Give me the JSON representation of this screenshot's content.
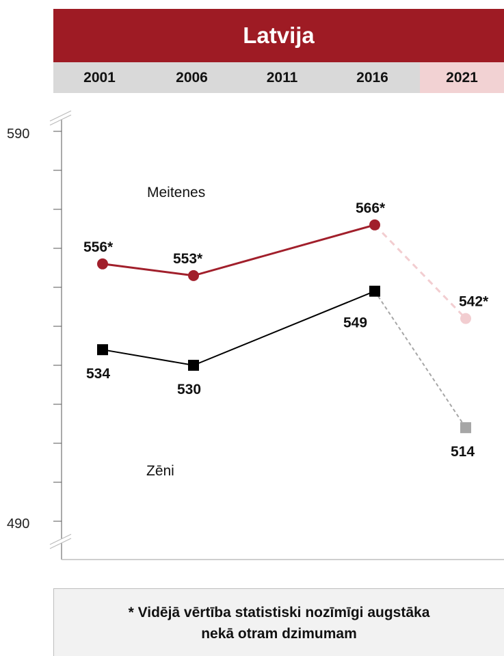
{
  "header": {
    "title": "Latvija",
    "highlight_color": "#9e1b24"
  },
  "chart_data": {
    "type": "line",
    "categories": [
      "2001",
      "2006",
      "2011",
      "2016",
      "2021"
    ],
    "ylim": [
      490,
      590
    ],
    "yticks": [
      "590",
      "490"
    ],
    "series": [
      {
        "name": "Meitenes",
        "color": "#a11f2b",
        "projected_color": "#f2cdd0",
        "marker": "circle",
        "points": [
          {
            "x": "2001",
            "y": 556,
            "label": "556*"
          },
          {
            "x": "2006",
            "y": 553,
            "label": "553*"
          },
          {
            "x": "2016",
            "y": 566,
            "label": "566*"
          },
          {
            "x": "2021",
            "y": 542,
            "label": "542*"
          }
        ]
      },
      {
        "name": "Zēni",
        "color": "#000000",
        "projected_color": "#a6a6a6",
        "marker": "square",
        "points": [
          {
            "x": "2001",
            "y": 534,
            "label": "534"
          },
          {
            "x": "2006",
            "y": 530,
            "label": "530"
          },
          {
            "x": "2016",
            "y": 549,
            "label": "549"
          },
          {
            "x": "2021",
            "y": 514,
            "label": "514"
          }
        ]
      }
    ],
    "highlighted_category": "2021",
    "grid": false
  },
  "footnote": {
    "line1": "* Vidējā vērtība statistiski nozīmīgi augstāka",
    "line2": "nekā otram dzimumam"
  }
}
